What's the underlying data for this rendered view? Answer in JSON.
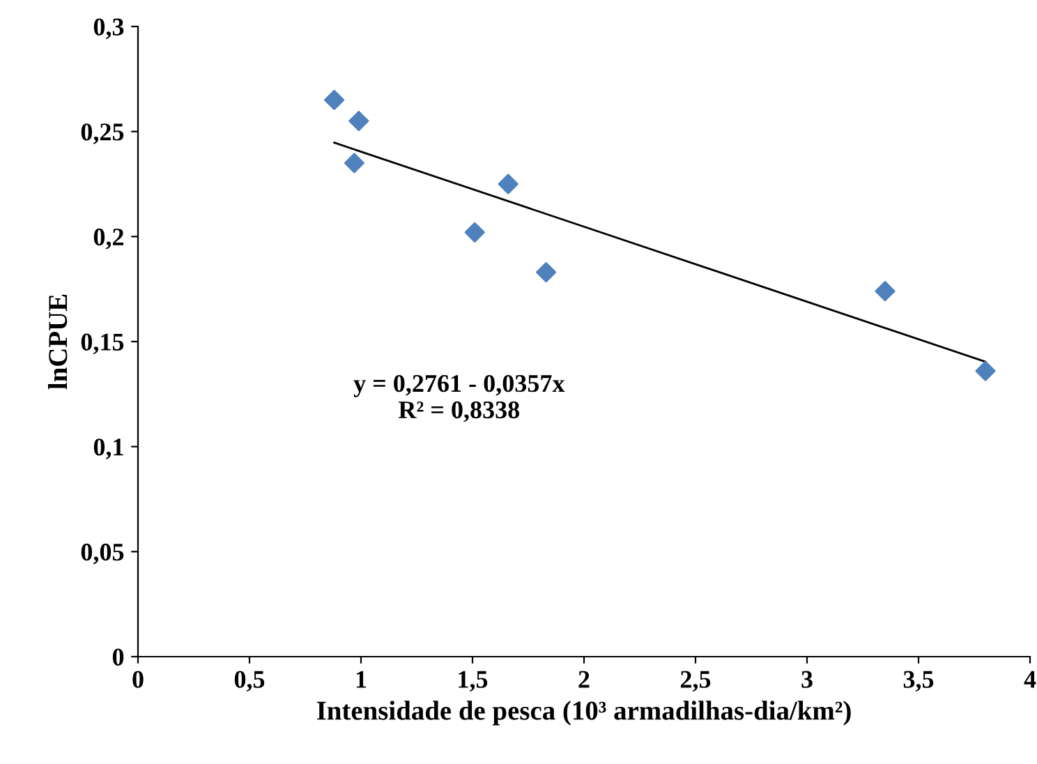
{
  "chart_data": {
    "type": "scatter",
    "xlabel": "Intensidade de pesca (10³ armadilhas-dia/km²)",
    "ylabel": "lnCPUE",
    "series": [
      {
        "type": "scatter",
        "color": "#4f81bd",
        "marker": "diamond",
        "x": [
          0.88,
          0.99,
          0.97,
          1.66,
          1.51,
          1.83,
          3.35,
          3.8
        ],
        "values": [
          0.265,
          0.255,
          0.235,
          0.225,
          0.202,
          0.183,
          0.174,
          0.136
        ]
      },
      {
        "type": "line",
        "color": "#000000",
        "marker": "none",
        "x": [
          0.88,
          3.8
        ],
        "values": [
          0.2447,
          0.1404
        ]
      }
    ],
    "annotations": [
      "y = 0,2761 - 0,0357x\nR² = 0,8338"
    ],
    "xlim": [
      0,
      4
    ],
    "ylim": [
      0,
      0.3
    ],
    "xticks": [
      0,
      {
        "value": 0.5,
        "label": "0,5"
      },
      1,
      {
        "value": 1.5,
        "label": "1,5"
      },
      2,
      {
        "value": 2.5,
        "label": "2,5"
      },
      3,
      {
        "value": 3.5,
        "label": "3,5"
      },
      4
    ],
    "yticks": [
      0,
      {
        "value": 0.05,
        "label": "0,05"
      },
      {
        "value": 0.1,
        "label": "0,1"
      },
      {
        "value": 0.15,
        "label": "0,15"
      },
      {
        "value": 0.2,
        "label": "0,2"
      },
      {
        "value": 0.25,
        "label": "0,25"
      },
      {
        "value": 0.3,
        "label": "0,3"
      }
    ],
    "grid": false,
    "legend": false
  }
}
